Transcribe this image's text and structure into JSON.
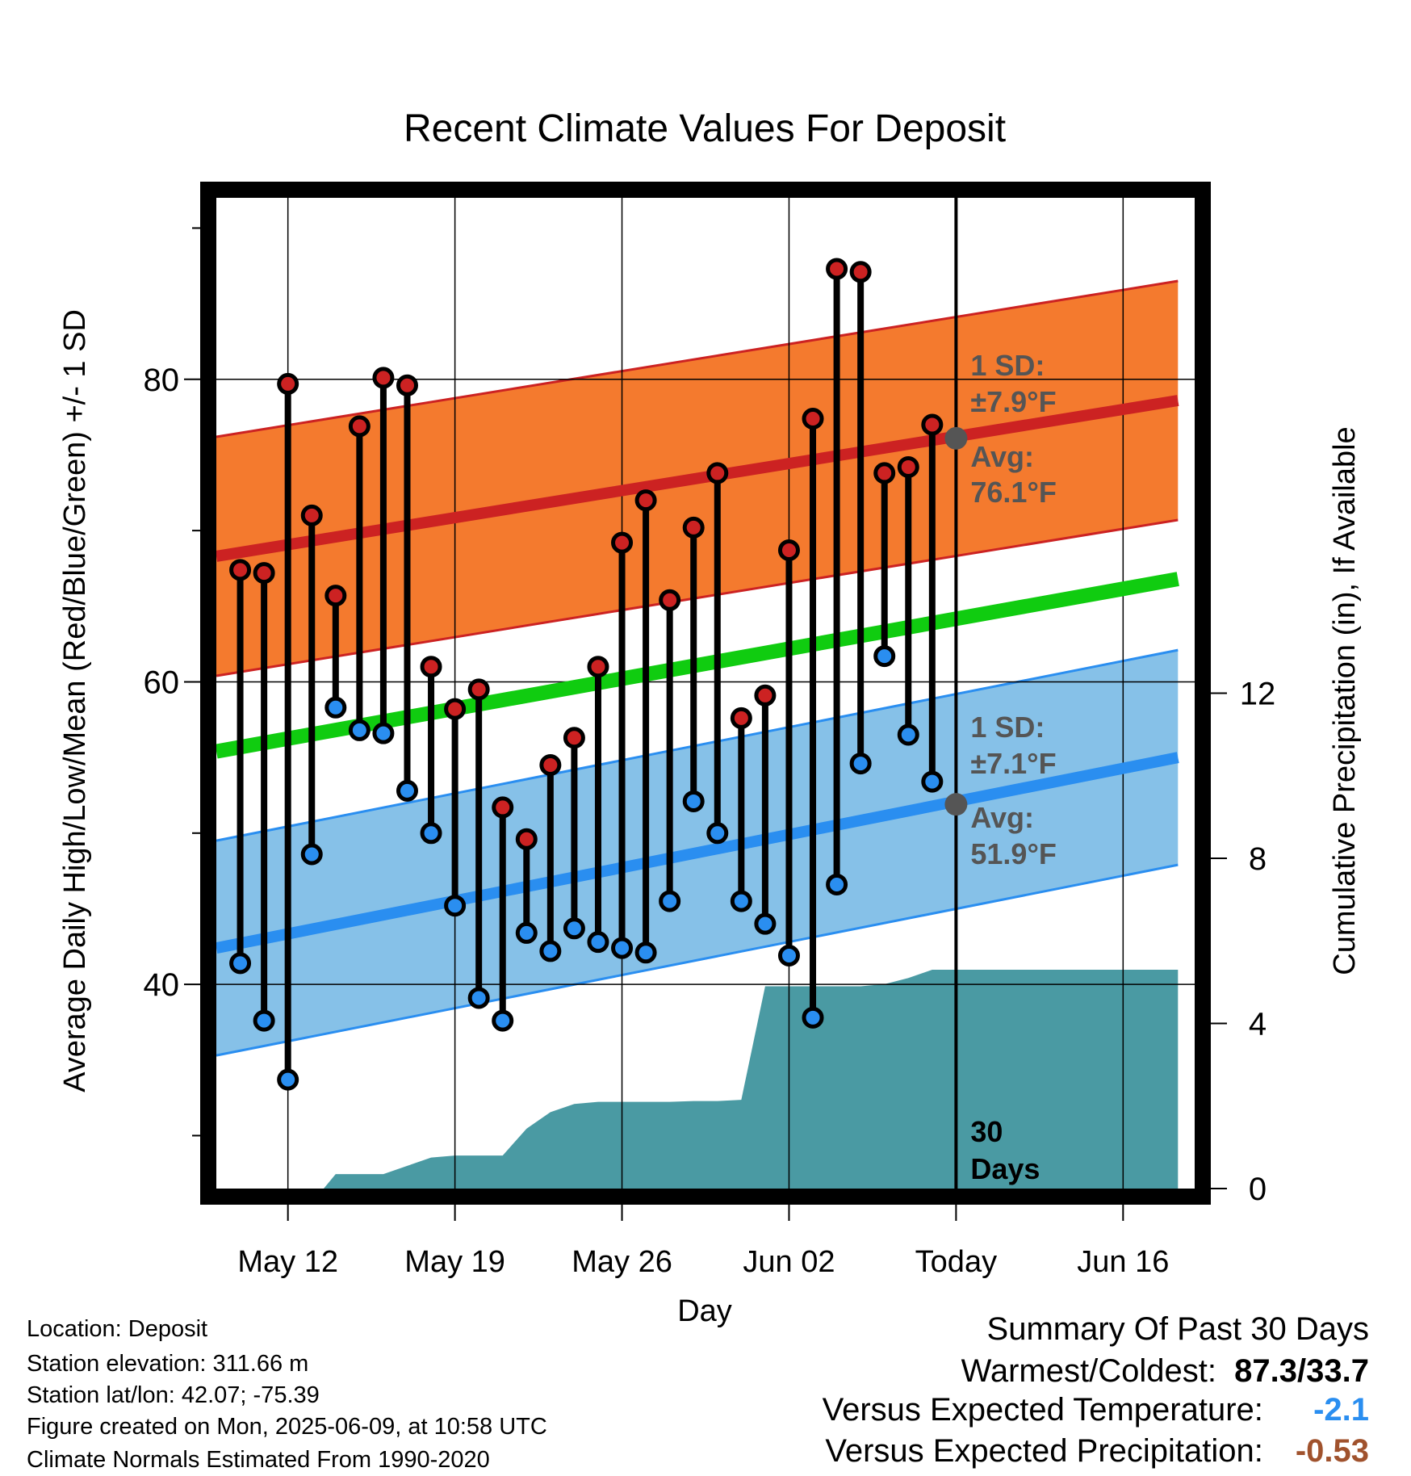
{
  "chart_data": {
    "type": "line",
    "title": "Recent Climate Values For Deposit",
    "xlabel": "Day",
    "ylabel": "Average Daily High/Low/Mean (Red/Blue/Green) +/- 1 SD",
    "y2label": "Cumulative Precipitation (in), If Available",
    "x_ticks": [
      {
        "label": "May 12",
        "day": 3
      },
      {
        "label": "May 19",
        "day": 10
      },
      {
        "label": "May 26",
        "day": 17
      },
      {
        "label": "Jun 02",
        "day": 24
      },
      {
        "label": "Today",
        "day": 31
      },
      {
        "label": "Jun 16",
        "day": 38
      }
    ],
    "x_range": [
      0,
      41
    ],
    "ylim": [
      26.5,
      92
    ],
    "y_ticks": [
      40,
      60,
      80
    ],
    "y_minor_ticks": [
      30,
      50,
      70,
      90
    ],
    "y2lim": [
      0,
      24
    ],
    "y2_ticks": [
      0,
      4,
      8,
      12
    ],
    "colors": {
      "high": "#cc2222",
      "low": "#2a8ef0",
      "mean": "#10cc10",
      "high_band": "#f47a2e",
      "low_band": "#86c1e8",
      "precip": "#4a9aa3",
      "today_marker": "#555555",
      "annotation_text": "#555555"
    },
    "normal_high": {
      "start_day": 0,
      "end_day": 40.3,
      "start": 68.3,
      "end": 78.6,
      "sd": 7.9
    },
    "normal_low": {
      "start_day": 0,
      "end_day": 40.3,
      "start": 42.4,
      "end": 55.0,
      "sd": 7.1
    },
    "normal_mean": {
      "start_day": 0,
      "end_day": 40.3,
      "start": 55.4,
      "end": 66.8
    },
    "days": [
      1,
      2,
      3,
      4,
      5,
      6,
      7,
      8,
      9,
      10,
      11,
      12,
      13,
      14,
      15,
      16,
      17,
      18,
      19,
      20,
      21,
      22,
      23,
      24,
      25,
      26,
      27,
      28,
      29,
      30
    ],
    "highs": [
      67.4,
      67.2,
      79.7,
      71.0,
      65.7,
      76.9,
      80.1,
      79.6,
      61.0,
      58.2,
      59.5,
      51.7,
      49.6,
      54.5,
      56.3,
      61.0,
      69.2,
      72.0,
      65.4,
      70.2,
      73.8,
      57.6,
      59.1,
      68.7,
      77.4,
      87.3,
      87.1,
      73.8,
      74.2,
      77.0
    ],
    "lows": [
      41.4,
      37.6,
      33.7,
      48.6,
      58.3,
      56.8,
      56.6,
      52.8,
      50.0,
      45.2,
      39.1,
      37.6,
      43.4,
      42.2,
      43.7,
      42.8,
      42.4,
      42.1,
      45.5,
      52.1,
      50.0,
      45.5,
      44.0,
      41.9,
      37.8,
      46.6,
      54.6,
      61.7,
      56.5,
      53.4
    ],
    "precip_days": [
      0,
      1,
      3.5,
      4.5,
      5,
      7,
      8,
      9,
      10,
      11,
      12,
      13,
      14,
      15,
      16,
      17,
      18,
      19,
      20,
      21,
      22,
      23,
      24,
      25,
      26,
      27,
      28,
      29,
      30,
      31,
      35,
      40.3
    ],
    "precip_cum": [
      0,
      0,
      0,
      0,
      0.35,
      0.35,
      0.55,
      0.75,
      0.8,
      0.8,
      0.8,
      1.45,
      1.85,
      2.05,
      2.1,
      2.1,
      2.1,
      2.1,
      2.12,
      2.12,
      2.15,
      4.9,
      4.9,
      4.9,
      4.9,
      4.9,
      4.95,
      5.1,
      5.3,
      5.3,
      5.3,
      5.3
    ],
    "today_day": 31,
    "annotations": {
      "high_sd_line1": "1 SD:",
      "high_sd_line2": "±7.9°F",
      "high_avg_line1": "Avg:",
      "high_avg_line2": "76.1°F",
      "low_sd_line1": "1 SD:",
      "low_sd_line2": "±7.1°F",
      "low_avg_line1": "Avg:",
      "low_avg_line2": "51.9°F",
      "window_line1": "30",
      "window_line2": "Days"
    },
    "today_avg_high": 76.1,
    "today_avg_low": 51.9
  },
  "info": {
    "location": "Location: Deposit",
    "elevation": "Station elevation: 311.66 m",
    "latlon": "Station lat/lon: 42.07; -75.39",
    "created": "Figure created on Mon, 2025-06-09, at 10:58 UTC",
    "normals": "Climate Normals Estimated From 1990-2020"
  },
  "summary": {
    "title": "Summary Of Past 30 Days",
    "warm_cold_label": "Warmest/Coldest:",
    "warm_cold_value": "87.3/33.7",
    "temp_label": "Versus Expected Temperature:",
    "temp_value": "-2.1",
    "temp_color": "#2a8ef0",
    "precip_label": "Versus Expected Precipitation:",
    "precip_value": "-0.53",
    "precip_color": "#a0522d"
  }
}
